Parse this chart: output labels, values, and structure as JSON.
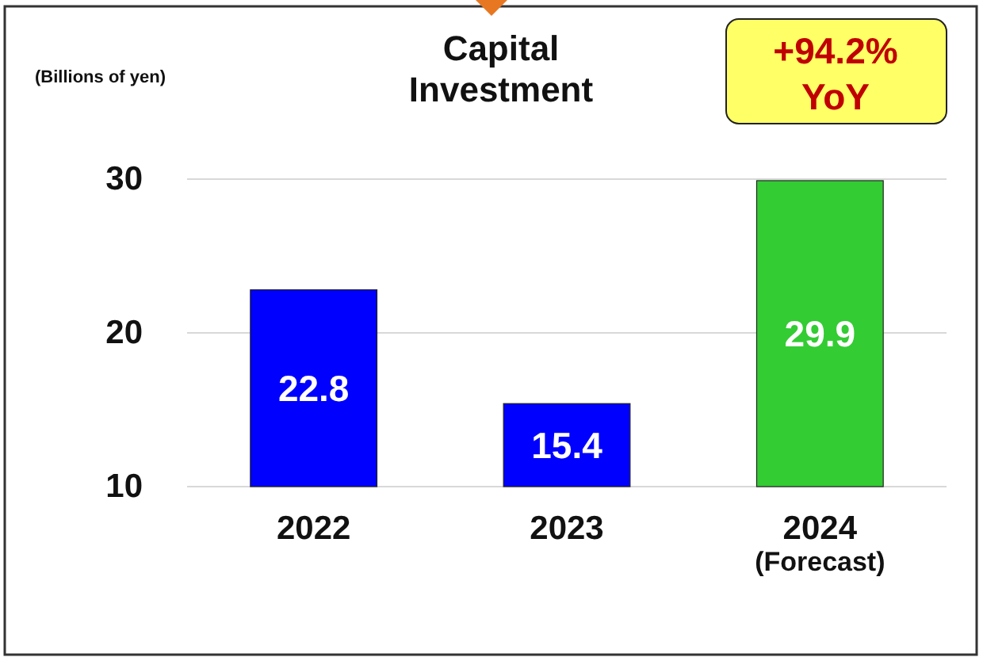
{
  "chart_data": {
    "type": "bar",
    "title": "Capital\nInvestment",
    "ylabel": "(Billions of yen)",
    "annotations": [
      "+94.2%\nYoY"
    ],
    "categories": [
      "2022",
      "2023",
      "2024\n(Forecast)"
    ],
    "values": [
      22.8,
      15.4,
      29.9
    ],
    "colors": [
      "#0000ff",
      "#0000ff",
      "#33cc33"
    ],
    "ylim": [
      10,
      30
    ],
    "yticks": [
      10,
      20,
      30
    ],
    "grid": "y",
    "data_labels": true
  }
}
